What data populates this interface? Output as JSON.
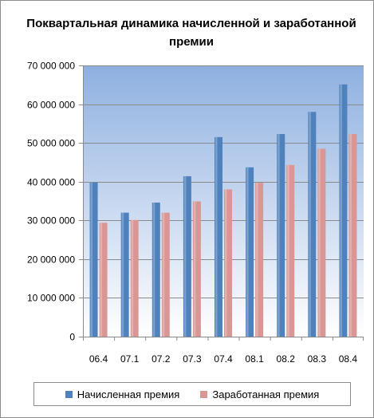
{
  "chart_data": {
    "type": "bar",
    "title": "Поквартальная динамика  начисленной и заработанной премии",
    "xlabel": "",
    "ylabel": "",
    "categories": [
      "06.4",
      "07.1",
      "07.2",
      "07.3",
      "07.4",
      "08.1",
      "08.2",
      "08.3",
      "08.4"
    ],
    "series": [
      {
        "name": "Начисленная премия",
        "color": "#4f81bd",
        "values": [
          39800000,
          32000000,
          34600000,
          41400000,
          51500000,
          43700000,
          52300000,
          58000000,
          65100000
        ]
      },
      {
        "name": "Заработанная премия",
        "color": "#d99694",
        "values": [
          29400000,
          30100000,
          32000000,
          34900000,
          38000000,
          39700000,
          44300000,
          48500000,
          52300000
        ]
      }
    ],
    "ylim": [
      0,
      70000000
    ],
    "yticks": [
      0,
      10000000,
      20000000,
      30000000,
      40000000,
      50000000,
      60000000,
      70000000
    ],
    "ytick_labels": [
      "0",
      "10 000 000",
      "20 000 000",
      "30 000 000",
      "40 000 000",
      "50 000 000",
      "60 000 000",
      "70 000 000"
    ],
    "grid": true,
    "legend_position": "bottom",
    "plot_background": [
      "#8eb0e0",
      "#ffffff"
    ]
  }
}
